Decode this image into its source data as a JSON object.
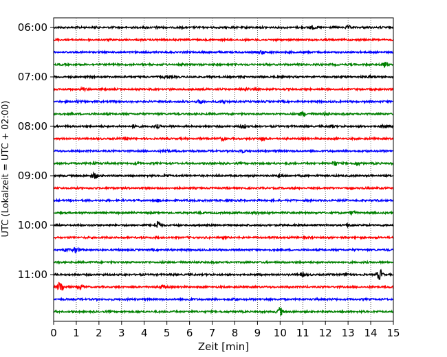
{
  "chart_data": {
    "type": "line",
    "xlabel": "Zeit  [min]",
    "ylabel": "UTC (Lokalzeit = UTC + 02:00)",
    "xlim": [
      0,
      15
    ],
    "x_ticks": [
      "0",
      "1",
      "2",
      "3",
      "4",
      "5",
      "6",
      "7",
      "8",
      "9",
      "10",
      "11",
      "12",
      "13",
      "14",
      "15"
    ],
    "y_ticks": [
      "06:00",
      "07:00",
      "08:00",
      "09:00",
      "10:00",
      "11:00"
    ],
    "grid_x": true,
    "trace_colors": [
      "#000000",
      "#ff0000",
      "#0000ff",
      "#008000"
    ],
    "traces": [
      {
        "start": "06:00",
        "color": "#000000",
        "bursts": [
          [
            4.6,
            0.3
          ],
          [
            11.4,
            0.5
          ],
          [
            13.0,
            0.4
          ]
        ]
      },
      {
        "start": "06:15",
        "color": "#ff0000",
        "bursts": []
      },
      {
        "start": "06:30",
        "color": "#0000ff",
        "bursts": [
          [
            9.2,
            0.5
          ]
        ]
      },
      {
        "start": "06:45",
        "color": "#008000",
        "bursts": [
          [
            14.6,
            0.8
          ]
        ]
      },
      {
        "start": "07:00",
        "color": "#000000",
        "bursts": [
          [
            5.0,
            0.4
          ],
          [
            14.0,
            0.3
          ]
        ]
      },
      {
        "start": "07:15",
        "color": "#ff0000",
        "bursts": [
          [
            1.3,
            0.4
          ],
          [
            8.5,
            0.4
          ]
        ]
      },
      {
        "start": "07:30",
        "color": "#0000ff",
        "bursts": [
          [
            1.0,
            0.3
          ],
          [
            6.5,
            0.6
          ],
          [
            7.5,
            0.4
          ]
        ]
      },
      {
        "start": "07:45",
        "color": "#008000",
        "bursts": [
          [
            11.0,
            0.8
          ],
          [
            12.0,
            0.6
          ]
        ]
      },
      {
        "start": "08:00",
        "color": "#000000",
        "bursts": [
          [
            3.6,
            0.5
          ],
          [
            4.6,
            0.4
          ],
          [
            8.4,
            0.6
          ],
          [
            12.3,
            0.4
          ],
          [
            14.6,
            0.5
          ]
        ]
      },
      {
        "start": "08:15",
        "color": "#ff0000",
        "bursts": [
          [
            3.2,
            0.4
          ],
          [
            7.5,
            0.5
          ],
          [
            9.2,
            0.4
          ]
        ]
      },
      {
        "start": "08:30",
        "color": "#0000ff",
        "bursts": [
          [
            5.0,
            0.4
          ],
          [
            8.3,
            0.5
          ]
        ]
      },
      {
        "start": "08:45",
        "color": "#008000",
        "bursts": [
          [
            1.8,
            0.3
          ],
          [
            3.7,
            0.4
          ],
          [
            12.4,
            0.8
          ],
          [
            13.4,
            0.3
          ]
        ]
      },
      {
        "start": "09:00",
        "color": "#000000",
        "bursts": [
          [
            1.8,
            1.0
          ],
          [
            5.0,
            0.3
          ],
          [
            10.0,
            0.4
          ]
        ]
      },
      {
        "start": "09:15",
        "color": "#ff0000",
        "bursts": []
      },
      {
        "start": "09:30",
        "color": "#0000ff",
        "bursts": [
          [
            4.6,
            0.3
          ]
        ]
      },
      {
        "start": "09:45",
        "color": "#008000",
        "bursts": [
          [
            9.0,
            0.4
          ],
          [
            13.2,
            0.5
          ]
        ]
      },
      {
        "start": "10:00",
        "color": "#000000",
        "bursts": [
          [
            4.6,
            1.5
          ],
          [
            13.0,
            0.3
          ]
        ]
      },
      {
        "start": "10:15",
        "color": "#ff0000",
        "bursts": []
      },
      {
        "start": "10:30",
        "color": "#0000ff",
        "bursts": [
          [
            0.6,
            0.5
          ],
          [
            1.0,
            0.9
          ]
        ]
      },
      {
        "start": "10:45",
        "color": "#008000",
        "bursts": []
      },
      {
        "start": "11:00",
        "color": "#000000",
        "bursts": [
          [
            11.0,
            0.5
          ],
          [
            13.0,
            0.6
          ],
          [
            14.4,
            1.6
          ]
        ]
      },
      {
        "start": "11:15",
        "color": "#ff0000",
        "bursts": [
          [
            0.3,
            1.8
          ],
          [
            1.2,
            0.6
          ],
          [
            4.8,
            0.5
          ]
        ]
      },
      {
        "start": "11:30",
        "color": "#0000ff",
        "bursts": [
          [
            6.0,
            0.3
          ],
          [
            8.0,
            0.3
          ]
        ]
      },
      {
        "start": "11:45",
        "color": "#008000",
        "bursts": [
          [
            10.0,
            1.3
          ]
        ]
      }
    ]
  }
}
